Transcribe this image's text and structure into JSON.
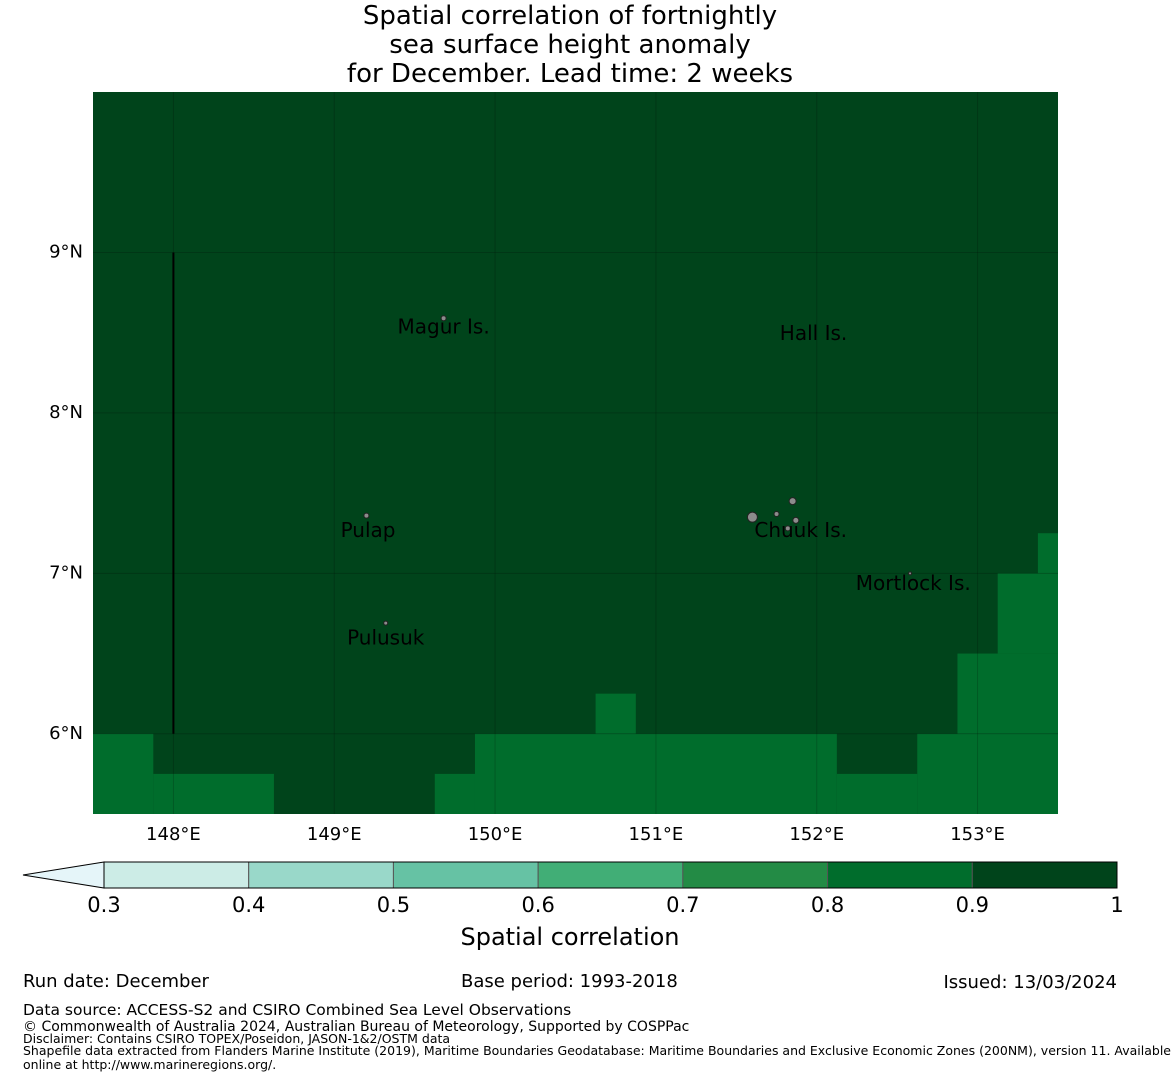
{
  "title": {
    "line1": "Spatial correlation of fortnightly",
    "line2": "sea surface height anomaly",
    "line3": "for December. Lead time: 2 weeks"
  },
  "map": {
    "lon_range": [
      147.5,
      153.5
    ],
    "lat_range": [
      5.5,
      10.0
    ],
    "x_ticks": [
      {
        "value": 148,
        "label": "148°E"
      },
      {
        "value": 149,
        "label": "149°E"
      },
      {
        "value": 150,
        "label": "150°E"
      },
      {
        "value": 151,
        "label": "151°E"
      },
      {
        "value": 152,
        "label": "152°E"
      },
      {
        "value": 153,
        "label": "153°E"
      }
    ],
    "y_ticks": [
      {
        "value": 9,
        "label": "9°N"
      },
      {
        "value": 8,
        "label": "8°N"
      },
      {
        "value": 7,
        "label": "7°N"
      },
      {
        "value": 6,
        "label": "6°N"
      }
    ],
    "base_color": "#00441b",
    "cells": [
      {
        "lon": [
          147.5,
          147.875
        ],
        "lat": [
          5.5,
          6.0
        ],
        "color": "#006d2c"
      },
      {
        "lon": [
          147.875,
          148.625
        ],
        "lat": [
          5.5,
          5.75
        ],
        "color": "#006d2c"
      },
      {
        "lon": [
          149.625,
          149.875
        ],
        "lat": [
          5.5,
          5.75
        ],
        "color": "#006d2c"
      },
      {
        "lon": [
          149.875,
          152.125
        ],
        "lat": [
          5.5,
          6.0
        ],
        "color": "#006d2c"
      },
      {
        "lon": [
          150.625,
          150.875
        ],
        "lat": [
          6.0,
          6.25
        ],
        "color": "#006d2c"
      },
      {
        "lon": [
          152.125,
          152.625
        ],
        "lat": [
          5.5,
          5.75
        ],
        "color": "#006d2c"
      },
      {
        "lon": [
          152.625,
          153.5
        ],
        "lat": [
          5.5,
          6.0
        ],
        "color": "#006d2c"
      },
      {
        "lon": [
          152.875,
          153.5
        ],
        "lat": [
          6.0,
          6.5
        ],
        "color": "#006d2c"
      },
      {
        "lon": [
          153.125,
          153.5
        ],
        "lat": [
          6.5,
          7.0
        ],
        "color": "#006d2c"
      },
      {
        "lon": [
          153.375,
          153.5
        ],
        "lat": [
          7.0,
          7.25
        ],
        "color": "#006d2c"
      }
    ],
    "places": [
      {
        "name": "Magur Is.",
        "lon": 149.68,
        "lat": 8.53
      },
      {
        "name": "Hall Is.",
        "lon": 151.98,
        "lat": 8.49
      },
      {
        "name": "Pulap",
        "lon": 149.21,
        "lat": 7.26
      },
      {
        "name": "Chuuk Is.",
        "lon": 151.9,
        "lat": 7.26
      },
      {
        "name": "Mortlock Is.",
        "lon": 152.6,
        "lat": 6.93
      },
      {
        "name": "Pulusuk",
        "lon": 149.32,
        "lat": 6.59
      }
    ],
    "boundary_line": {
      "lon": 148.0,
      "lat": [
        6.0,
        9.0
      ]
    }
  },
  "colorbar": {
    "label": "Spatial correlation",
    "extend": "min",
    "under_color": "#e5f5f9",
    "bins": [
      {
        "from": 0.3,
        "to": 0.4,
        "color": "#ccece6"
      },
      {
        "from": 0.4,
        "to": 0.5,
        "color": "#99d8c9"
      },
      {
        "from": 0.5,
        "to": 0.6,
        "color": "#66c2a4"
      },
      {
        "from": 0.6,
        "to": 0.7,
        "color": "#41ae76"
      },
      {
        "from": 0.7,
        "to": 0.8,
        "color": "#238b45"
      },
      {
        "from": 0.8,
        "to": 0.9,
        "color": "#006d2c"
      },
      {
        "from": 0.9,
        "to": 1.0,
        "color": "#00441b"
      }
    ],
    "ticks": [
      "0.3",
      "0.4",
      "0.5",
      "0.6",
      "0.7",
      "0.8",
      "0.9",
      "1"
    ]
  },
  "info": {
    "run_date": "Run date: December",
    "base_period": "Base period: 1993-2018",
    "issued": "Issued: 13/03/2024"
  },
  "footer": {
    "data_source": "Data source: ACCESS-S2 and CSIRO Combined Sea Level Observations",
    "copyright": "© Commonwealth of Australia 2024, Australian Bureau of Meteorology, Supported by COSPPac",
    "disclaimer": "Disclaimer: Contains CSIRO TOPEX/Poseidon, JASON-1&2/OSTM data",
    "shapefile_line1": "Shapefile data extracted from Flanders Marine Institute (2019), Maritime Boundaries Geodatabase: Maritime Boundaries and Exclusive Economic Zones (200NM), version 11. Available",
    "shapefile_line2": "online at http://www.marineregions.org/."
  }
}
